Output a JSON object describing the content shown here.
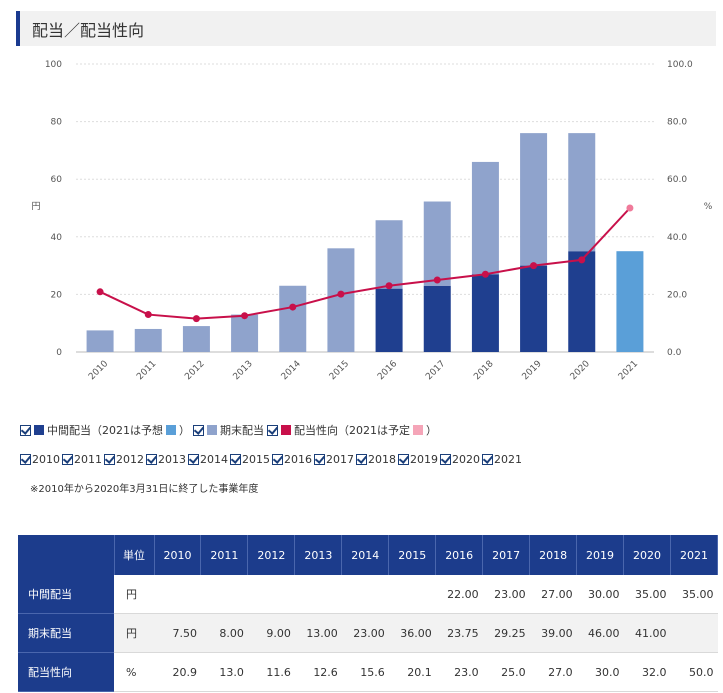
{
  "page_title": "配当／配当性向",
  "chart_data": {
    "type": "bar",
    "categories": [
      "2010",
      "2011",
      "2012",
      "2013",
      "2014",
      "2015",
      "2016",
      "2017",
      "2018",
      "2019",
      "2020",
      "2021"
    ],
    "series": [
      {
        "name": "中間配当",
        "values": [
          null,
          null,
          null,
          null,
          null,
          null,
          22.0,
          23.0,
          27.0,
          30.0,
          35.0,
          35.0
        ],
        "color": "#1f3f8f",
        "forecast_color": "#5a9fd8"
      },
      {
        "name": "期末配当",
        "values": [
          7.5,
          8.0,
          9.0,
          13.0,
          23.0,
          36.0,
          23.75,
          29.25,
          39.0,
          46.0,
          41.0,
          null
        ],
        "color": "#8fa3cc"
      },
      {
        "name": "配当性向",
        "type": "line",
        "axis": "right",
        "values": [
          20.9,
          13.0,
          11.6,
          12.6,
          15.6,
          20.1,
          23.0,
          25.0,
          27.0,
          30.0,
          32.0,
          50.0
        ],
        "color": "#c8104a",
        "forecast_color": "#f07a9a"
      }
    ],
    "ylabel": "円",
    "y2label": "%",
    "ylim": [
      0,
      100
    ],
    "y2lim": [
      0,
      100
    ],
    "yticks": [
      "0",
      "20",
      "40",
      "60",
      "80",
      "100"
    ],
    "y2ticks": [
      "0.0",
      "20.0",
      "40.0",
      "60.0",
      "80.0",
      "100.0"
    ],
    "grid": true
  },
  "legend": {
    "interim_label": "中間配当（2021は予想",
    "close_paren": "）",
    "year_end_label": "期末配当",
    "payout_label": "配当性向（2021は予定",
    "close_paren2": "）"
  },
  "year_filters": [
    "2010",
    "2011",
    "2012",
    "2013",
    "2014",
    "2015",
    "2016",
    "2017",
    "2018",
    "2019",
    "2020",
    "2021"
  ],
  "note": "※2010年から2020年3月31日に終了した事業年度",
  "table": {
    "header": [
      "",
      "単位",
      "2010",
      "2011",
      "2012",
      "2013",
      "2014",
      "2015",
      "2016",
      "2017",
      "2018",
      "2019",
      "2020",
      "2021"
    ],
    "rows": [
      {
        "label": "中間配当",
        "unit": "円",
        "values": [
          "",
          "",
          "",
          "",
          "",
          "",
          "22.00",
          "23.00",
          "27.00",
          "30.00",
          "35.00",
          "35.00"
        ]
      },
      {
        "label": "期末配当",
        "unit": "円",
        "values": [
          "7.50",
          "8.00",
          "9.00",
          "13.00",
          "23.00",
          "36.00",
          "23.75",
          "29.25",
          "39.00",
          "46.00",
          "41.00",
          ""
        ]
      },
      {
        "label": "配当性向",
        "unit": "%",
        "values": [
          "20.9",
          "13.0",
          "11.6",
          "12.6",
          "15.6",
          "20.1",
          "23.0",
          "25.0",
          "27.0",
          "30.0",
          "32.0",
          "50.0"
        ]
      }
    ]
  }
}
